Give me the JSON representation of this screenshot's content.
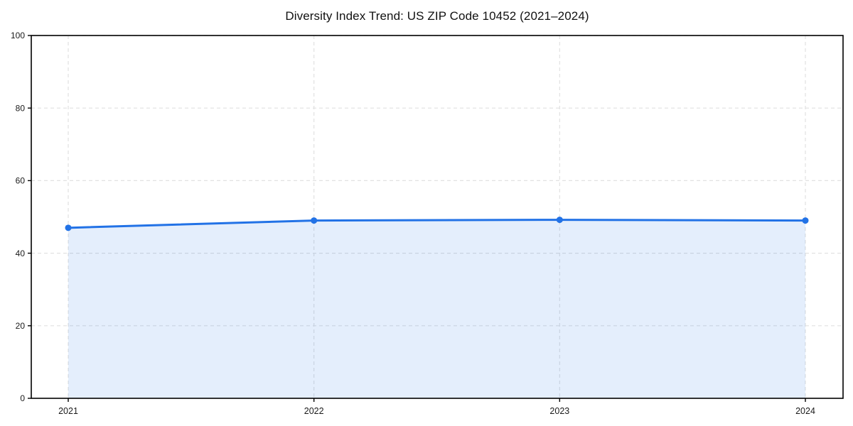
{
  "page": {
    "background": "#ffffff"
  },
  "chart_data": {
    "type": "line",
    "title": "Diversity Index Trend: US ZIP Code 10452 (2021–2024)",
    "categories": [
      "2021",
      "2022",
      "2023",
      "2024"
    ],
    "series": [
      {
        "name": "Diversity Index",
        "values": [
          47.0,
          49.0,
          49.2,
          49.0
        ]
      }
    ],
    "xlabel": "",
    "ylabel": "",
    "ylim": [
      0,
      100
    ],
    "yticks": [
      0,
      20,
      40,
      60,
      80,
      100
    ],
    "grid": true,
    "grid_style": "dashed",
    "legend": "none",
    "area_fill": true,
    "marker": "circle",
    "colors": {
      "line": "#2272e6",
      "marker": "#2272e6",
      "fill": "rgba(34,114,230,0.12)",
      "grid": "#e1e1e1",
      "axis": "#000000",
      "text": "#1a1a1a"
    }
  }
}
